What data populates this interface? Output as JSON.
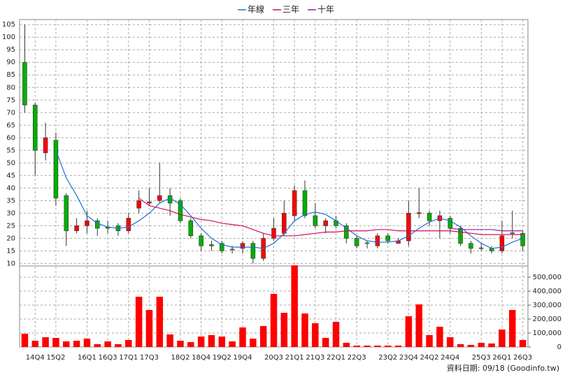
{
  "chart_data": {
    "type": "candlestick",
    "categories": [
      null,
      "14Q4",
      null,
      "15Q2",
      null,
      null,
      "16Q1",
      null,
      "16Q3",
      null,
      "17Q1",
      null,
      "17Q3",
      null,
      null,
      "18Q2",
      null,
      "18Q4",
      null,
      "19Q2",
      null,
      "19Q4",
      null,
      null,
      "20Q3",
      null,
      "21Q1",
      null,
      "21Q3",
      null,
      "22Q1",
      null,
      "22Q3",
      null,
      null,
      "23Q2",
      null,
      "23Q4",
      null,
      "24Q2",
      null,
      "24Q4",
      null,
      null,
      "25Q3",
      null,
      "26Q1",
      null,
      "26Q3"
    ],
    "open": [
      90,
      73,
      54,
      59,
      37,
      23,
      25,
      27,
      24.5,
      25,
      23,
      32,
      34,
      35,
      37,
      35,
      27,
      21,
      17.5,
      18,
      15.7,
      16,
      18,
      12,
      20,
      22,
      29,
      39,
      29,
      25,
      27,
      25,
      20,
      18.2,
      17,
      21,
      18,
      19,
      29.8,
      30,
      27,
      28,
      24,
      18,
      16.2,
      16,
      15,
      22.2,
      22
    ],
    "high": [
      105,
      74,
      66,
      62,
      38,
      28,
      31,
      28,
      27,
      26,
      30,
      39,
      40,
      50,
      40,
      36,
      28,
      22,
      19,
      19,
      17,
      19,
      19,
      22,
      28,
      35,
      41,
      43,
      34,
      28,
      29,
      26,
      21,
      19,
      22,
      22,
      20,
      35,
      40,
      31,
      31,
      29,
      25,
      19,
      18,
      17,
      27,
      31,
      23
    ],
    "low": [
      70,
      45,
      51,
      33,
      17,
      22,
      22,
      21,
      22,
      21,
      22,
      30,
      33,
      34,
      29,
      26,
      20,
      15,
      15,
      14,
      14,
      14,
      10,
      11,
      19,
      21,
      27,
      28,
      24,
      22,
      24,
      18,
      16,
      16,
      16,
      18,
      18,
      17,
      28,
      25,
      20,
      22,
      17,
      14,
      15,
      14,
      14,
      20,
      15
    ],
    "close": [
      73,
      55,
      60,
      36,
      23,
      25,
      27,
      24,
      24,
      23,
      28,
      35,
      34.5,
      37,
      34,
      27,
      21,
      17,
      17,
      15,
      15.5,
      18,
      12,
      20,
      24,
      30,
      39,
      29,
      25,
      27,
      25,
      20,
      17,
      18,
      21,
      19,
      19,
      30,
      30.2,
      27,
      29,
      24,
      18,
      16,
      16,
      15,
      21,
      22,
      17
    ],
    "up_color": "#ff0000",
    "down_color": "#00b000",
    "ylim": [
      9,
      107
    ],
    "yticks": [
      10,
      15,
      20,
      25,
      30,
      35,
      40,
      45,
      50,
      55,
      60,
      65,
      70,
      75,
      80,
      85,
      90,
      95,
      100,
      105
    ],
    "series": [
      {
        "name": "年線",
        "color": "#1f6fd6",
        "values": [
          null,
          null,
          null,
          55,
          44,
          37,
          29,
          26,
          24.5,
          24,
          24.5,
          27,
          30,
          34,
          36,
          33.5,
          29,
          24,
          20,
          17.5,
          16.5,
          16.5,
          16.5,
          16,
          18,
          22,
          27,
          29.5,
          30.5,
          29.5,
          27,
          24,
          21,
          19,
          18.5,
          18.5,
          19,
          21,
          24,
          26.5,
          28,
          27,
          24.5,
          21,
          18,
          16,
          16.5,
          18.5,
          20
        ]
      },
      {
        "name": "三年",
        "color": "#d0105a",
        "values": [
          null,
          null,
          null,
          null,
          null,
          null,
          null,
          null,
          null,
          null,
          null,
          36,
          33,
          32,
          31,
          29.5,
          28.5,
          27.5,
          27,
          26,
          25.5,
          25,
          23.5,
          22,
          21,
          21,
          21,
          21.5,
          22,
          22.5,
          22.5,
          23,
          23,
          23,
          23.5,
          23.5,
          23,
          23,
          23,
          23,
          23,
          23,
          22.5,
          22,
          21.5,
          21.5,
          21.5,
          21.5,
          21.5
        ]
      },
      {
        "name": "十年",
        "color": "#9020a0",
        "values": [
          null,
          null,
          null,
          null,
          null,
          null,
          null,
          null,
          null,
          null,
          null,
          null,
          null,
          null,
          null,
          null,
          null,
          null,
          null,
          null,
          null,
          null,
          null,
          null,
          null,
          null,
          null,
          null,
          null,
          null,
          null,
          null,
          null,
          null,
          null,
          null,
          null,
          null,
          null,
          null,
          null,
          24,
          23.5,
          23.5,
          23.5,
          23.5,
          23,
          23,
          23
        ]
      }
    ],
    "volume": {
      "color": "#ff0000",
      "values": [
        95000,
        45000,
        70000,
        65000,
        40000,
        45000,
        60000,
        20000,
        40000,
        20000,
        50000,
        360000,
        265000,
        360000,
        90000,
        45000,
        35000,
        75000,
        85000,
        75000,
        40000,
        140000,
        60000,
        150000,
        380000,
        245000,
        585000,
        240000,
        170000,
        65000,
        180000,
        30000,
        10000,
        10000,
        10000,
        10000,
        10000,
        220000,
        305000,
        85000,
        145000,
        70000,
        20000,
        15000,
        30000,
        25000,
        125000,
        265000,
        50000
      ],
      "ylim": [
        0,
        580000
      ],
      "yticks": [
        0,
        {
          "value": 100000,
          "label": "100,000"
        },
        {
          "value": 200000,
          "label": "200,000"
        },
        {
          "value": 300000,
          "label": "300,000"
        },
        {
          "value": 400000,
          "label": "400,000"
        },
        {
          "value": 500000,
          "label": "500,000"
        }
      ]
    },
    "footer": "資料日期: 09/18  (Goodinfo.tw)"
  }
}
